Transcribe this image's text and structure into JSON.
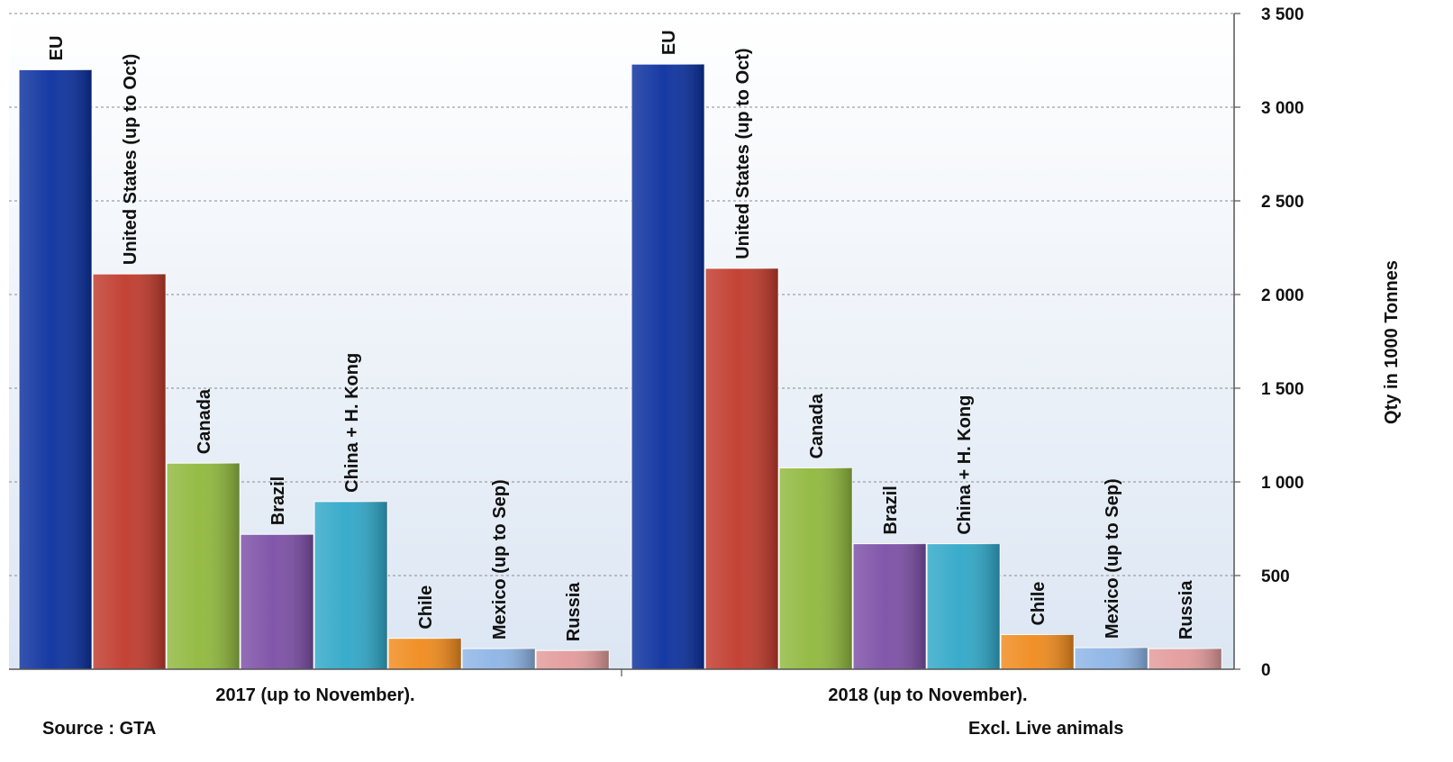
{
  "chart_data": {
    "type": "bar",
    "groups": [
      "2017 (up to November).",
      "2018 (up to November)."
    ],
    "series": [
      {
        "name": "EU",
        "color": "#0a2f9e",
        "values": [
          3200,
          3230
        ]
      },
      {
        "name": "United States (up to Oct)",
        "color": "#c0392b",
        "values": [
          2110,
          2140
        ]
      },
      {
        "name": "Canada",
        "color": "#8fb83c",
        "values": [
          1100,
          1075
        ]
      },
      {
        "name": "Brazil",
        "color": "#7b4ea6",
        "values": [
          720,
          670
        ]
      },
      {
        "name": "China + H. Kong",
        "color": "#2fa7c8",
        "values": [
          895,
          670
        ]
      },
      {
        "name": "Chile",
        "color": "#f08a1c",
        "values": [
          165,
          185
        ]
      },
      {
        "name": "Mexico (up to Sep)",
        "color": "#8db4e6",
        "values": [
          110,
          115
        ]
      },
      {
        "name": "Russia",
        "color": "#e39a9a",
        "values": [
          100,
          110
        ]
      }
    ],
    "ylim": [
      0,
      3500
    ],
    "yticks": [
      "0",
      "500",
      "1 000",
      "1 500",
      "2 000",
      "2 500",
      "3 000",
      "3 500"
    ],
    "ytick_values": [
      0,
      500,
      1000,
      1500,
      2000,
      2500,
      3000,
      3500
    ],
    "ylabel": "Qty in 1000 Tonnes",
    "y_axis_side": "right",
    "grid": true,
    "legend": "none (labels on bars)"
  },
  "notes": {
    "source": "Source : GTA",
    "excl": "Excl. Live animals"
  }
}
